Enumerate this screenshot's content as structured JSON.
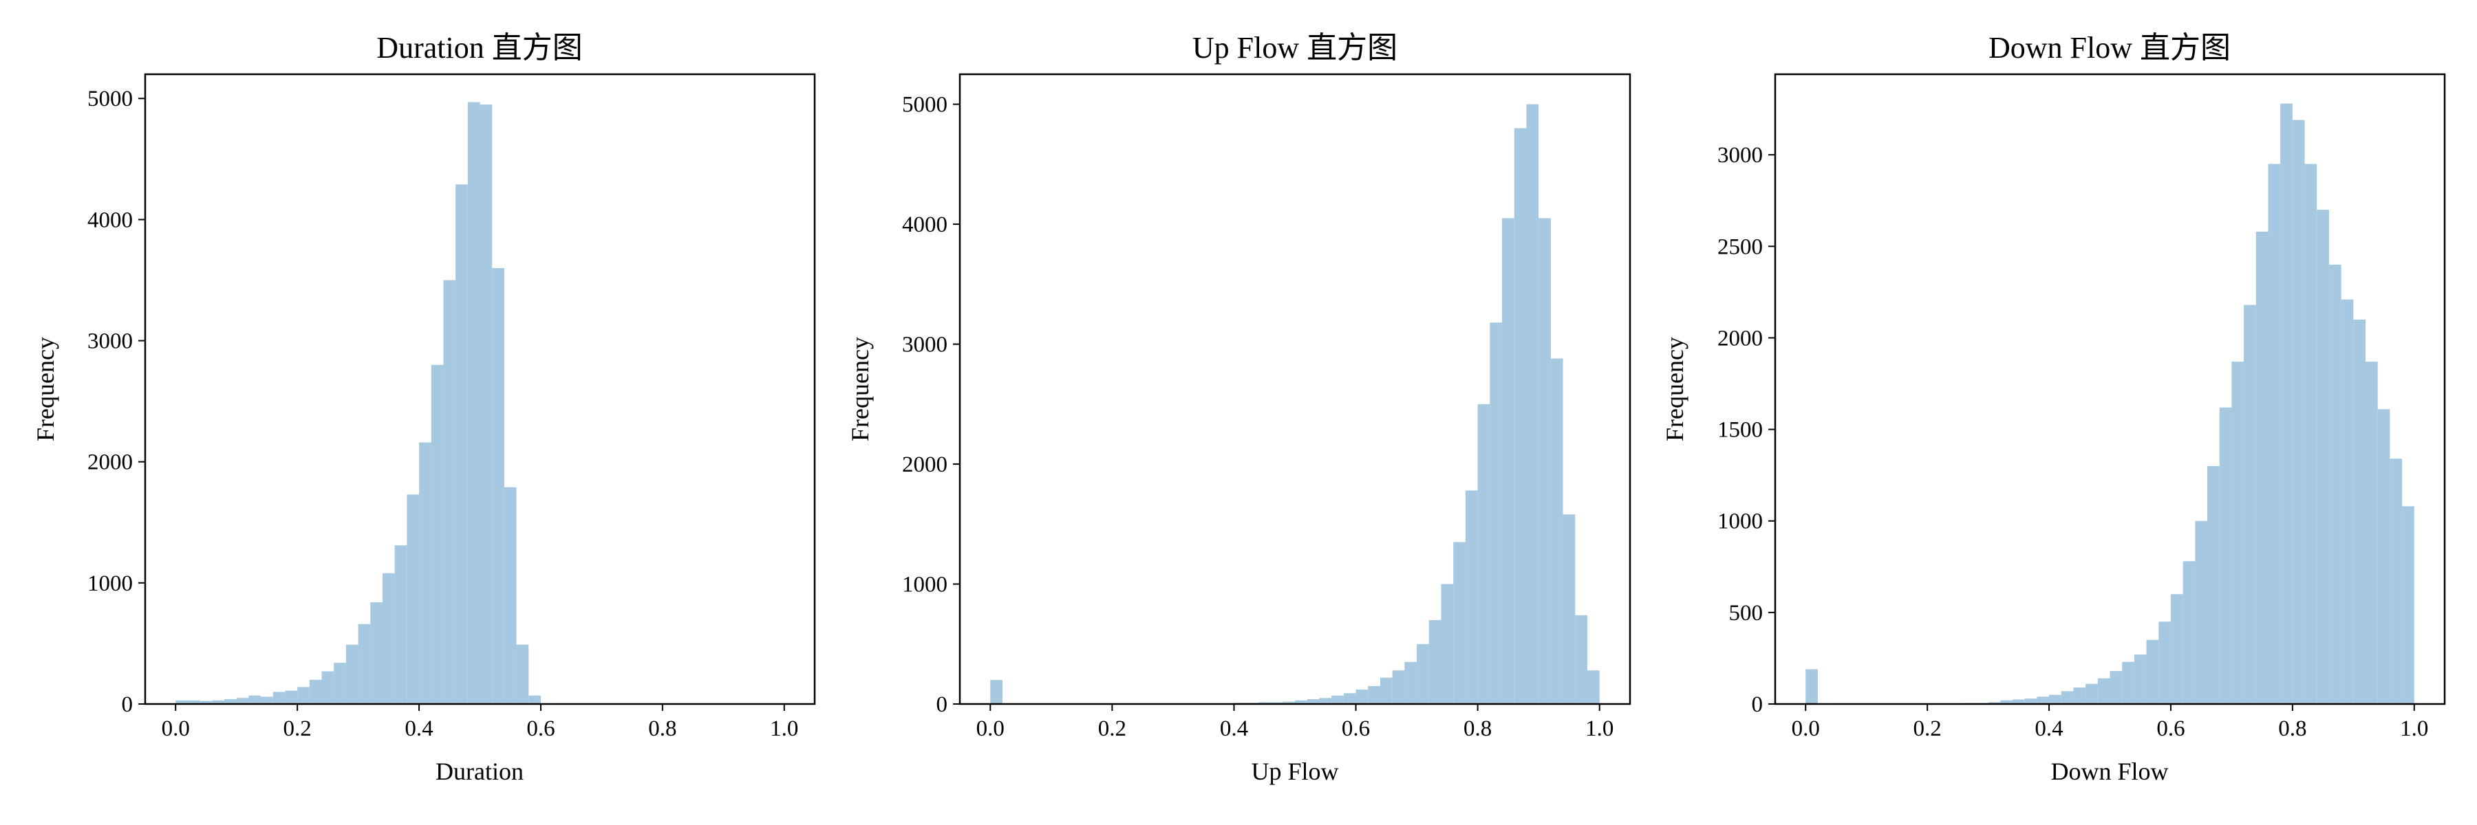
{
  "style": {
    "bar_color": "#a6c8e0",
    "frame_color": "#000000"
  },
  "chart_data": [
    {
      "type": "bar",
      "title": "Duration 直方图",
      "xlabel": "Duration",
      "ylabel": "Frequency",
      "xlim": [
        -0.05,
        1.05
      ],
      "ylim": [
        0,
        5200
      ],
      "x_ticks": [
        0.0,
        0.2,
        0.4,
        0.6,
        0.8,
        1.0
      ],
      "x_tick_labels": [
        "0.0",
        "0.2",
        "0.4",
        "0.6",
        "0.8",
        "1.0"
      ],
      "y_ticks": [
        0,
        1000,
        2000,
        3000,
        4000,
        5000
      ],
      "y_tick_labels": [
        "0",
        "1000",
        "2000",
        "3000",
        "4000",
        "5000"
      ],
      "bin_width": 0.02,
      "bin_starts": [
        0.0,
        0.02,
        0.04,
        0.06,
        0.08,
        0.1,
        0.12,
        0.14,
        0.16,
        0.18,
        0.2,
        0.22,
        0.24,
        0.26,
        0.28,
        0.3,
        0.32,
        0.34,
        0.36,
        0.38,
        0.4,
        0.42,
        0.44,
        0.46,
        0.48,
        0.5,
        0.52,
        0.54,
        0.56,
        0.58,
        0.6,
        0.62,
        0.64,
        0.66,
        0.68,
        0.7,
        0.72,
        0.74,
        0.76,
        0.78,
        0.8,
        0.82,
        0.84,
        0.86,
        0.88,
        0.9,
        0.92,
        0.94,
        0.96,
        0.98
      ],
      "values": [
        30,
        30,
        25,
        30,
        40,
        50,
        70,
        60,
        100,
        110,
        140,
        200,
        270,
        340,
        490,
        660,
        840,
        1080,
        1310,
        1730,
        2160,
        2800,
        3500,
        4290,
        4970,
        4950,
        3600,
        1790,
        490,
        70,
        5,
        5,
        5,
        5,
        5,
        5,
        5,
        5,
        5,
        5,
        5,
        5,
        5,
        5,
        5,
        5,
        5,
        5,
        5,
        5
      ]
    },
    {
      "type": "bar",
      "title": "Up Flow 直方图",
      "xlabel": "Up Flow",
      "ylabel": "Frequency",
      "xlim": [
        -0.05,
        1.05
      ],
      "ylim": [
        0,
        5250
      ],
      "x_ticks": [
        0.0,
        0.2,
        0.4,
        0.6,
        0.8,
        1.0
      ],
      "x_tick_labels": [
        "0.0",
        "0.2",
        "0.4",
        "0.6",
        "0.8",
        "1.0"
      ],
      "y_ticks": [
        0,
        1000,
        2000,
        3000,
        4000,
        5000
      ],
      "y_tick_labels": [
        "0",
        "1000",
        "2000",
        "3000",
        "4000",
        "5000"
      ],
      "bin_width": 0.02,
      "bin_starts": [
        0.0,
        0.02,
        0.04,
        0.06,
        0.08,
        0.1,
        0.12,
        0.14,
        0.16,
        0.18,
        0.2,
        0.22,
        0.24,
        0.26,
        0.28,
        0.3,
        0.32,
        0.34,
        0.36,
        0.38,
        0.4,
        0.42,
        0.44,
        0.46,
        0.48,
        0.5,
        0.52,
        0.54,
        0.56,
        0.58,
        0.6,
        0.62,
        0.64,
        0.66,
        0.68,
        0.7,
        0.72,
        0.74,
        0.76,
        0.78,
        0.8,
        0.82,
        0.84,
        0.86,
        0.88,
        0.9,
        0.92,
        0.94,
        0.96,
        0.98
      ],
      "values": [
        200,
        0,
        0,
        0,
        0,
        0,
        0,
        0,
        0,
        0,
        0,
        0,
        0,
        0,
        0,
        0,
        0,
        0,
        5,
        5,
        10,
        10,
        15,
        15,
        20,
        30,
        40,
        50,
        70,
        90,
        120,
        150,
        220,
        280,
        350,
        500,
        700,
        1000,
        1350,
        1780,
        2500,
        3180,
        4050,
        4800,
        5000,
        4050,
        2880,
        1580,
        740,
        280
      ]
    },
    {
      "type": "bar",
      "title": "Down Flow 直方图",
      "xlabel": "Down Flow",
      "ylabel": "Frequency",
      "xlim": [
        -0.05,
        1.05
      ],
      "ylim": [
        0,
        3440
      ],
      "x_ticks": [
        0.0,
        0.2,
        0.4,
        0.6,
        0.8,
        1.0
      ],
      "x_tick_labels": [
        "0.0",
        "0.2",
        "0.4",
        "0.6",
        "0.8",
        "1.0"
      ],
      "y_ticks": [
        0,
        500,
        1000,
        1500,
        2000,
        2500,
        3000
      ],
      "y_tick_labels": [
        "0",
        "500",
        "1000",
        "1500",
        "2000",
        "2500",
        "3000"
      ],
      "bin_width": 0.02,
      "bin_starts": [
        0.0,
        0.02,
        0.04,
        0.06,
        0.08,
        0.1,
        0.12,
        0.14,
        0.16,
        0.18,
        0.2,
        0.22,
        0.24,
        0.26,
        0.28,
        0.3,
        0.32,
        0.34,
        0.36,
        0.38,
        0.4,
        0.42,
        0.44,
        0.46,
        0.48,
        0.5,
        0.52,
        0.54,
        0.56,
        0.58,
        0.6,
        0.62,
        0.64,
        0.66,
        0.68,
        0.7,
        0.72,
        0.74,
        0.76,
        0.78,
        0.8,
        0.82,
        0.84,
        0.86,
        0.88,
        0.9,
        0.92,
        0.94,
        0.96,
        0.98
      ],
      "values": [
        190,
        0,
        0,
        0,
        0,
        0,
        0,
        0,
        0,
        0,
        0,
        0,
        0,
        5,
        5,
        10,
        20,
        25,
        30,
        40,
        50,
        70,
        90,
        110,
        140,
        180,
        230,
        270,
        350,
        450,
        600,
        780,
        1000,
        1300,
        1620,
        1870,
        2180,
        2580,
        2950,
        3280,
        3190,
        2950,
        2700,
        2400,
        2210,
        2100,
        1870,
        1610,
        1340,
        1080
      ]
    }
  ]
}
